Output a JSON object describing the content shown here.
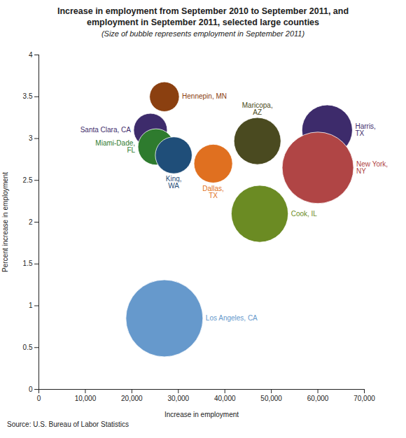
{
  "chart_data": {
    "type": "scatter",
    "title": "Increase in employment from September 2010 to September 2011, and\nemployment in September 2011, selected large counties",
    "subtitle": "(Size of bubble represents employment in September 2011)",
    "xlabel": "Increase in employment",
    "ylabel": "Percent increase in employment",
    "source": "Source: U.S. Bureau of Labor Statistics",
    "xlim": [
      0,
      70000
    ],
    "ylim": [
      0.0,
      4.0
    ],
    "xticks": [
      0,
      {
        "value": 10000,
        "label": "10,000"
      },
      {
        "value": 20000,
        "label": "20,000"
      },
      {
        "value": 30000,
        "label": "30,000"
      },
      {
        "value": 40000,
        "label": "40,000"
      },
      {
        "value": 50000,
        "label": "50,000"
      },
      {
        "value": 60000,
        "label": "60,000"
      },
      {
        "value": 70000,
        "label": "70,000"
      }
    ],
    "yticks": [
      0,
      0.5,
      1,
      1.5,
      2,
      2.5,
      3,
      3.5,
      4
    ],
    "grid": false,
    "series": [
      {
        "name": "Los Angeles, CA",
        "color": "#6699CC",
        "x": [
          27000
        ],
        "values": [
          0.85
        ],
        "sizes": [
          4300000
        ]
      },
      {
        "name": "Hennepin, MN",
        "color": "#8B4010",
        "x": [
          27000
        ],
        "values": [
          3.5
        ],
        "sizes": [
          640000
        ]
      },
      {
        "name": "Santa Clara, CA",
        "color": "#3D2B6B",
        "x": [
          24000
        ],
        "values": [
          3.1
        ],
        "sizes": [
          820000
        ]
      },
      {
        "name": "Miami-Dade,\nFL",
        "color": "#2E7B2E",
        "x": [
          25200
        ],
        "values": [
          2.9
        ],
        "sizes": [
          950000
        ]
      },
      {
        "name": "King,\nWA",
        "color": "#1F4E79",
        "x": [
          29000
        ],
        "values": [
          2.8
        ],
        "sizes": [
          980000
        ]
      },
      {
        "name": "Dallas,\nTX",
        "color": "#E07020",
        "x": [
          37500
        ],
        "values": [
          2.7
        ],
        "sizes": [
          1080000
        ]
      },
      {
        "name": "Maricopa,\nAZ",
        "color": "#4A4A20",
        "x": [
          47000
        ],
        "values": [
          2.97
        ],
        "sizes": [
          1600000
        ]
      },
      {
        "name": "Cook, IL",
        "color": "#6B8B23",
        "x": [
          47500
        ],
        "values": [
          2.1
        ],
        "sizes": [
          2350000
        ]
      },
      {
        "name": "Harris,\nTX",
        "color": "#3D2B6B",
        "x": [
          62000
        ],
        "values": [
          3.1
        ],
        "sizes": [
          1850000
        ]
      },
      {
        "name": "New York,\nNY",
        "color": "#B04545",
        "x": [
          60000
        ],
        "values": [
          2.65
        ],
        "sizes": [
          3700000
        ]
      }
    ]
  }
}
